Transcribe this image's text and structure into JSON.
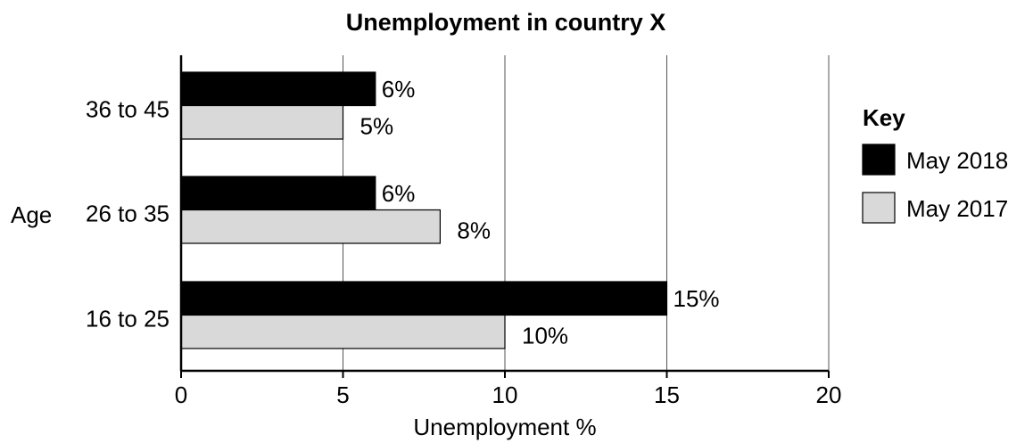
{
  "chart_data": {
    "type": "bar",
    "orientation": "horizontal",
    "title": "Unemployment in country X",
    "xlabel": "Unemployment %",
    "ylabel": "Age",
    "xlim": [
      0,
      20
    ],
    "xticks": [
      "0",
      "5",
      "10",
      "15",
      "20"
    ],
    "categories": [
      "36 to 45",
      "26 to 35",
      "16 to 25"
    ],
    "series": [
      {
        "name": "May 2018",
        "color": "#000000",
        "values": [
          6,
          6,
          15
        ],
        "labels": [
          "6%",
          "6%",
          "15%"
        ]
      },
      {
        "name": "May 2017",
        "color": "#d9d9d9",
        "values": [
          5,
          8,
          10
        ],
        "labels": [
          "5%",
          "8%",
          "10%"
        ]
      }
    ],
    "grid": "vertical",
    "legend": {
      "title": "Key",
      "position": "right"
    }
  }
}
